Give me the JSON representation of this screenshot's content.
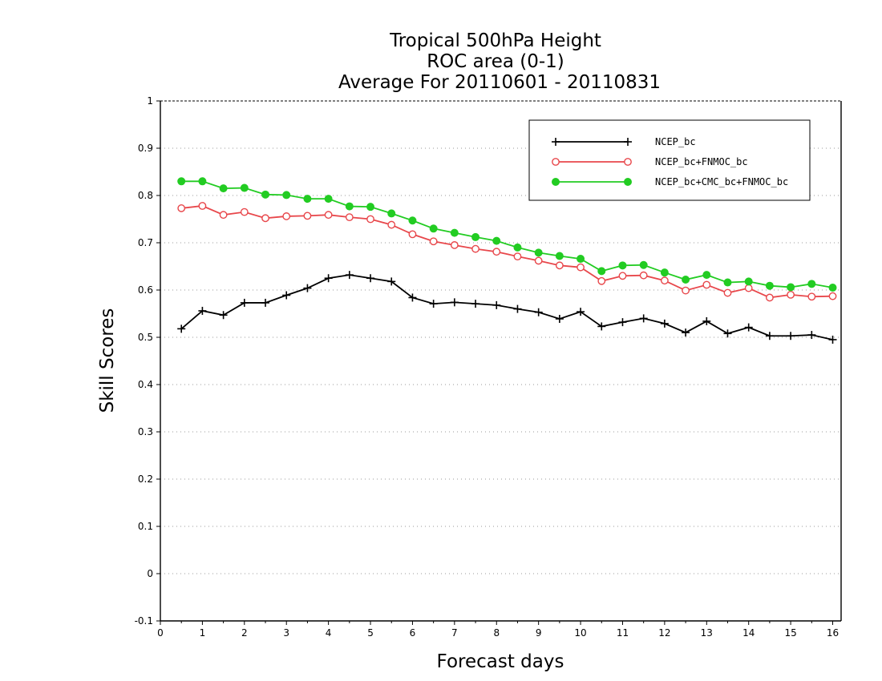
{
  "chart_data": {
    "type": "line",
    "title": [
      "Tropical 500hPa Height",
      "ROC area (0-1)",
      "Average For 20110601 - 20110831"
    ],
    "xlabel": "Forecast days",
    "ylabel": "Skill Scores",
    "xlim": [
      0,
      16.2
    ],
    "ylim": [
      -0.1,
      1
    ],
    "xticks": [
      "0",
      "1",
      "2",
      "3",
      "4",
      "5",
      "6",
      "7",
      "8",
      "9",
      "10",
      "11",
      "12",
      "13",
      "14",
      "15",
      "16"
    ],
    "yticks": [
      "-0.1",
      "0",
      "0.1",
      "0.2",
      "0.3",
      "0.4",
      "0.5",
      "0.6",
      "0.7",
      "0.8",
      "0.9",
      "1"
    ],
    "grid": true,
    "legend_position": "top-right",
    "x": [
      0.5,
      1,
      1.5,
      2,
      2.5,
      3,
      3.5,
      4,
      4.5,
      5,
      5.5,
      6,
      6.5,
      7,
      7.5,
      8,
      8.5,
      9,
      9.5,
      10,
      10.5,
      11,
      11.5,
      12,
      12.5,
      13,
      13.5,
      14,
      14.5,
      15,
      15.5,
      16
    ],
    "series": [
      {
        "name": "NCEP_bc",
        "color": "#000000",
        "marker": "plus",
        "values": [
          0.518,
          0.556,
          0.547,
          0.573,
          0.573,
          0.589,
          0.604,
          0.625,
          0.632,
          0.625,
          0.618,
          0.584,
          0.571,
          0.574,
          0.571,
          0.568,
          0.56,
          0.553,
          0.539,
          0.554,
          0.523,
          0.532,
          0.54,
          0.529,
          0.51,
          0.534,
          0.508,
          0.521,
          0.503,
          0.503,
          0.505,
          0.495
        ]
      },
      {
        "name": "NCEP_bc+FNMOC_bc",
        "color": "#e8474b",
        "marker": "open-circle",
        "values": [
          0.773,
          0.778,
          0.759,
          0.765,
          0.752,
          0.756,
          0.757,
          0.759,
          0.754,
          0.75,
          0.738,
          0.718,
          0.703,
          0.695,
          0.687,
          0.681,
          0.671,
          0.662,
          0.652,
          0.648,
          0.619,
          0.63,
          0.631,
          0.62,
          0.599,
          0.611,
          0.594,
          0.604,
          0.584,
          0.59,
          0.586,
          0.587
        ]
      },
      {
        "name": "NCEP_bc+CMC_bc+FNMOC_bc",
        "color": "#22cc22",
        "marker": "filled-circle",
        "values": [
          0.83,
          0.83,
          0.815,
          0.816,
          0.802,
          0.801,
          0.793,
          0.793,
          0.777,
          0.776,
          0.762,
          0.747,
          0.73,
          0.721,
          0.712,
          0.704,
          0.69,
          0.679,
          0.672,
          0.666,
          0.64,
          0.652,
          0.653,
          0.637,
          0.622,
          0.632,
          0.616,
          0.618,
          0.609,
          0.606,
          0.613,
          0.605
        ]
      }
    ]
  }
}
